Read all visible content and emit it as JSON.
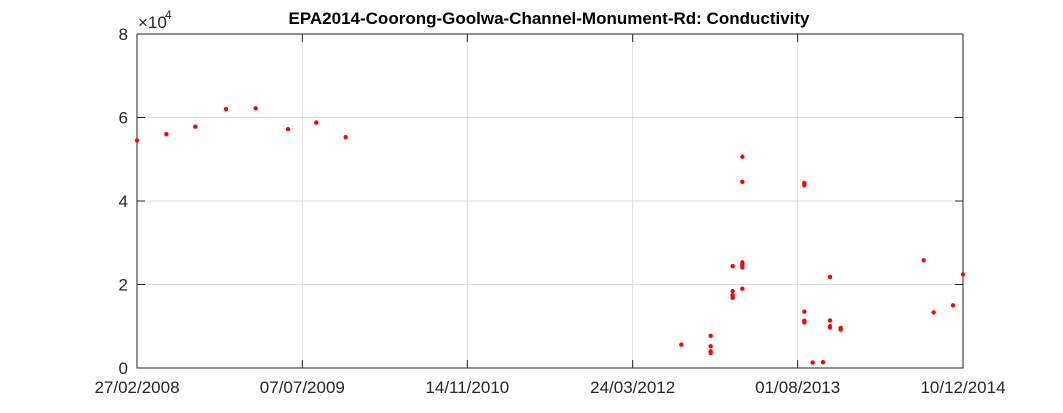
{
  "chart_data": {
    "type": "scatter",
    "title": "EPA2014-Coorong-Goolwa-Channel-Monument-Rd: Conductivity",
    "xlabel": "",
    "ylabel": "",
    "x_is_date": true,
    "xlim": [
      "2008-02-27",
      "2014-12-10"
    ],
    "ylim": [
      0,
      80000
    ],
    "x_ticks": [
      "2008-02-27",
      "2009-07-07",
      "2010-11-14",
      "2012-03-24",
      "2013-08-01",
      "2014-12-10"
    ],
    "x_tick_labels": [
      "27/02/2008",
      "07/07/2009",
      "14/11/2010",
      "24/03/2012",
      "01/08/2013",
      "10/12/2014"
    ],
    "y_ticks": [
      0,
      20000,
      40000,
      60000,
      80000
    ],
    "y_tick_labels": [
      "0",
      "2",
      "4",
      "6",
      "8"
    ],
    "y_multiplier": {
      "base": "×10",
      "exponent": "4"
    },
    "grid": true,
    "marker_color": "#ff0000",
    "series": [
      {
        "points": [
          {
            "x": "2008-02-27",
            "y": 54500
          },
          {
            "x": "2008-05-25",
            "y": 56000
          },
          {
            "x": "2008-08-20",
            "y": 57800
          },
          {
            "x": "2008-11-20",
            "y": 62000
          },
          {
            "x": "2009-02-17",
            "y": 62200
          },
          {
            "x": "2009-05-25",
            "y": 57200
          },
          {
            "x": "2009-08-18",
            "y": 58800
          },
          {
            "x": "2009-11-14",
            "y": 55300
          },
          {
            "x": "2012-08-17",
            "y": 5600
          },
          {
            "x": "2012-11-13",
            "y": 7700
          },
          {
            "x": "2012-11-13",
            "y": 5200
          },
          {
            "x": "2012-11-13",
            "y": 4000
          },
          {
            "x": "2012-11-13",
            "y": 3600
          },
          {
            "x": "2013-01-18",
            "y": 24400
          },
          {
            "x": "2013-01-18",
            "y": 18400
          },
          {
            "x": "2013-01-18",
            "y": 17400
          },
          {
            "x": "2013-01-18",
            "y": 16800
          },
          {
            "x": "2013-02-16",
            "y": 50600
          },
          {
            "x": "2013-02-16",
            "y": 44600
          },
          {
            "x": "2013-02-16",
            "y": 25300
          },
          {
            "x": "2013-02-16",
            "y": 24700
          },
          {
            "x": "2013-02-16",
            "y": 24100
          },
          {
            "x": "2013-02-16",
            "y": 19000
          },
          {
            "x": "2013-08-21",
            "y": 44300
          },
          {
            "x": "2013-08-21",
            "y": 43800
          },
          {
            "x": "2013-08-21",
            "y": 13500
          },
          {
            "x": "2013-08-21",
            "y": 11300
          },
          {
            "x": "2013-08-21",
            "y": 10900
          },
          {
            "x": "2013-09-15",
            "y": 1300
          },
          {
            "x": "2013-10-16",
            "y": 1400
          },
          {
            "x": "2013-11-06",
            "y": 21800
          },
          {
            "x": "2013-11-06",
            "y": 11400
          },
          {
            "x": "2013-11-06",
            "y": 10000
          },
          {
            "x": "2013-11-06",
            "y": 9700
          },
          {
            "x": "2013-12-08",
            "y": 9600
          },
          {
            "x": "2013-12-08",
            "y": 9200
          },
          {
            "x": "2014-08-14",
            "y": 25800
          },
          {
            "x": "2014-09-13",
            "y": 13300
          },
          {
            "x": "2014-11-10",
            "y": 15000
          },
          {
            "x": "2014-12-10",
            "y": 22400
          }
        ]
      }
    ]
  }
}
